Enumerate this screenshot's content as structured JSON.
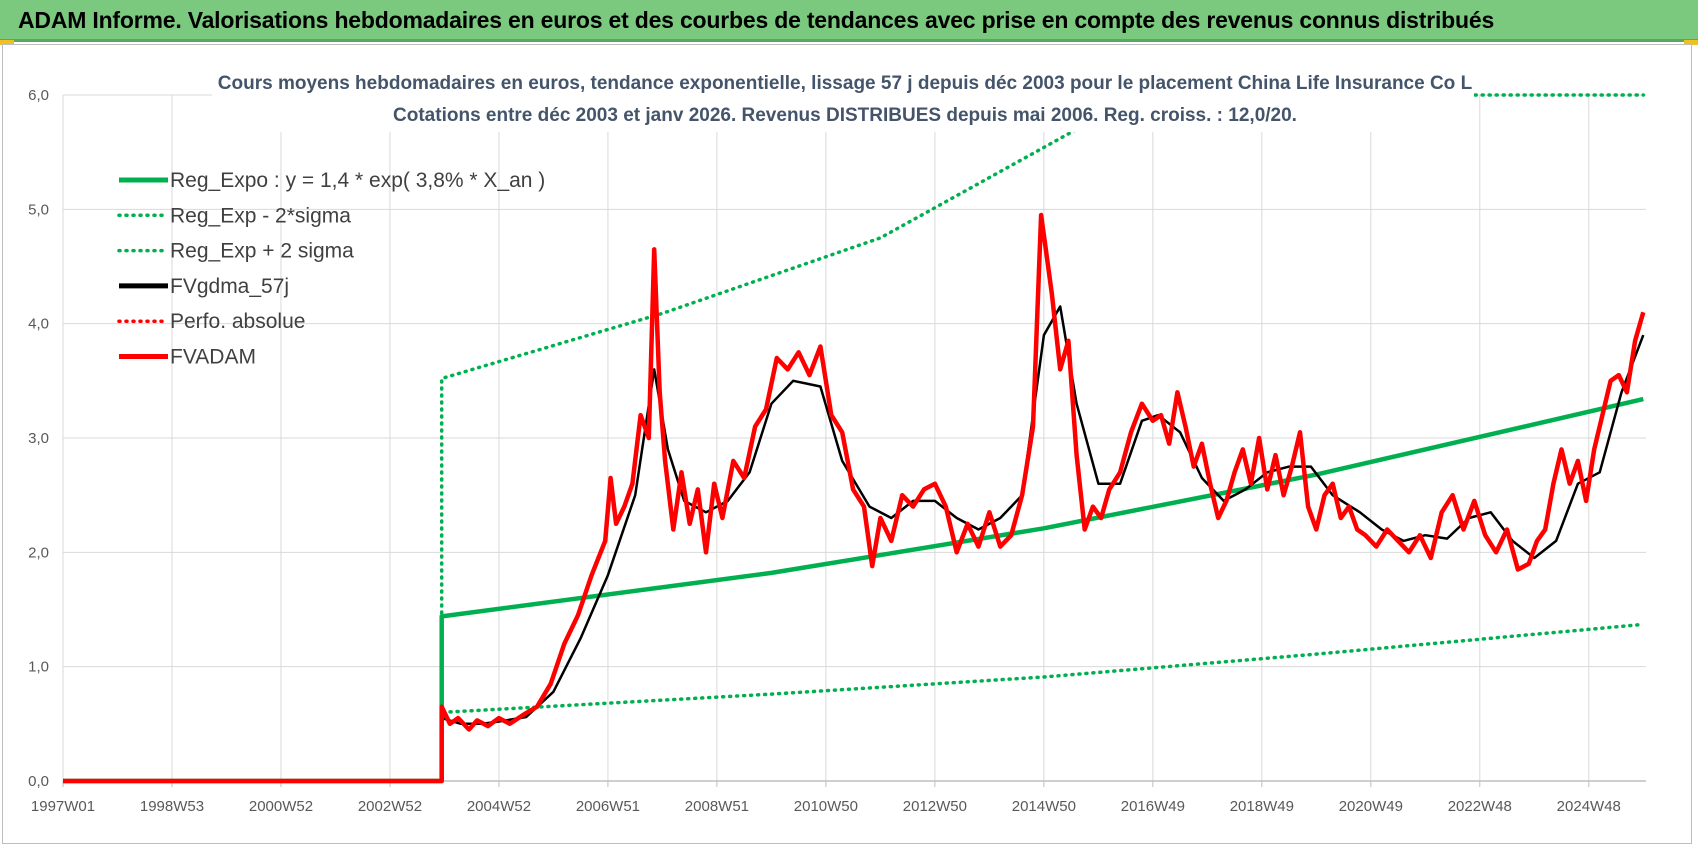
{
  "header": {
    "title": "ADAM Informe. Valorisations hebdomadaires en euros et des courbes de tendances avec prise en compte des revenus connus distribués"
  },
  "colors": {
    "banner": "#7bc97f",
    "green": "#00b050",
    "black": "#000000",
    "red": "#ff0000",
    "grid": "#d9d9d9"
  },
  "chart_data": {
    "type": "line",
    "title": "Cours moyens hebdomadaires en euros, tendance exponentielle, lissage 57 j depuis déc 2003 pour le placement China Life Insurance Co L",
    "subtitle": "Cotations entre déc 2003 et janv 2026. Revenus DISTRIBUES depuis mai 2006. Reg. croiss. : 12,0/20.",
    "xlabel": "",
    "ylabel": "",
    "ylim": [
      0,
      6
    ],
    "yticks": [
      "0,0",
      "1,0",
      "2,0",
      "3,0",
      "4,0",
      "5,0",
      "6,0"
    ],
    "xlim": [
      1997.0,
      2026.05
    ],
    "xticks": [
      {
        "label": "1997W01",
        "x": 1997.0
      },
      {
        "label": "1998W53",
        "x": 1999.0
      },
      {
        "label": "2000W52",
        "x": 2001.0
      },
      {
        "label": "2002W52",
        "x": 2003.0
      },
      {
        "label": "2004W52",
        "x": 2005.0
      },
      {
        "label": "2006W51",
        "x": 2007.0
      },
      {
        "label": "2008W51",
        "x": 2009.0
      },
      {
        "label": "2010W50",
        "x": 2011.0
      },
      {
        "label": "2012W50",
        "x": 2013.0
      },
      {
        "label": "2014W50",
        "x": 2015.0
      },
      {
        "label": "2016W49",
        "x": 2017.0
      },
      {
        "label": "2018W49",
        "x": 2019.0
      },
      {
        "label": "2020W49",
        "x": 2021.0
      },
      {
        "label": "2022W48",
        "x": 2023.0
      },
      {
        "label": "2024W48",
        "x": 2025.0
      }
    ],
    "grid": true,
    "legend_position": "top-left",
    "start_year": 2003.95,
    "series": [
      {
        "name": "Reg_Expo : y = 1,4 * exp( 3,8% *  X_an )",
        "color": "#00b050",
        "style": "solid",
        "width": 4.5,
        "x": [
          1997.0,
          2003.95,
          2003.95,
          2010.0,
          2015.0,
          2020.0,
          2026.0
        ],
        "y": [
          0,
          0,
          1.44,
          1.82,
          2.21,
          2.68,
          3.34
        ]
      },
      {
        "name": "Reg_Exp - 2*sigma",
        "color": "#00b050",
        "style": "dotted",
        "width": 3.5,
        "x": [
          2003.95,
          2003.95,
          2010.0,
          2015.0,
          2020.0,
          2026.0
        ],
        "y": [
          0,
          0.6,
          0.76,
          0.91,
          1.11,
          1.37
        ]
      },
      {
        "name": "Reg_Exp + 2 sigma",
        "color": "#00b050",
        "style": "dotted",
        "width": 3.5,
        "x": [
          2003.95,
          2003.95,
          2008.0,
          2012.0,
          2015.6,
          2016.0,
          2026.0
        ],
        "y": [
          0,
          3.52,
          4.09,
          4.75,
          5.7,
          6.0,
          6.0
        ]
      },
      {
        "name": "FVgdma_57j",
        "color": "#000000",
        "style": "solid",
        "width": 2.5,
        "x": [
          1997.0,
          2003.95,
          2003.95,
          2004.3,
          2004.7,
          2005.0,
          2005.5,
          2006.0,
          2006.5,
          2007.0,
          2007.5,
          2007.85,
          2008.1,
          2008.4,
          2008.8,
          2009.2,
          2009.6,
          2010.0,
          2010.4,
          2010.9,
          2011.3,
          2011.8,
          2012.2,
          2012.6,
          2013.0,
          2013.4,
          2013.8,
          2014.2,
          2014.6,
          2015.0,
          2015.3,
          2015.6,
          2016.0,
          2016.4,
          2016.8,
          2017.1,
          2017.5,
          2017.9,
          2018.3,
          2018.7,
          2019.1,
          2019.5,
          2019.9,
          2020.3,
          2020.8,
          2021.2,
          2021.6,
          2022.0,
          2022.4,
          2022.8,
          2023.2,
          2023.6,
          2024.0,
          2024.4,
          2024.8,
          2025.2,
          2025.6,
          2026.0
        ],
        "y": [
          0,
          0,
          0.55,
          0.5,
          0.5,
          0.52,
          0.56,
          0.78,
          1.25,
          1.8,
          2.5,
          3.6,
          2.9,
          2.45,
          2.35,
          2.45,
          2.7,
          3.3,
          3.5,
          3.45,
          2.8,
          2.4,
          2.3,
          2.45,
          2.45,
          2.3,
          2.2,
          2.3,
          2.5,
          3.9,
          4.15,
          3.3,
          2.6,
          2.6,
          3.15,
          3.2,
          3.05,
          2.65,
          2.45,
          2.55,
          2.7,
          2.75,
          2.75,
          2.5,
          2.35,
          2.2,
          2.1,
          2.15,
          2.12,
          2.3,
          2.35,
          2.1,
          1.95,
          2.1,
          2.6,
          2.7,
          3.4,
          3.9
        ]
      },
      {
        "name": "Perfo. absolue",
        "color": "#ff0000",
        "style": "dotted",
        "width": 3,
        "x": [],
        "y": []
      },
      {
        "name": "FVADAM",
        "color": "#ff0000",
        "style": "solid",
        "width": 4.5,
        "x": [
          1997.0,
          2003.95,
          2003.95,
          2004.1,
          2004.25,
          2004.45,
          2004.6,
          2004.8,
          2005.0,
          2005.2,
          2005.45,
          2005.7,
          2005.95,
          2006.2,
          2006.45,
          2006.7,
          2006.95,
          2007.05,
          2007.15,
          2007.3,
          2007.45,
          2007.6,
          2007.75,
          2007.85,
          2007.95,
          2008.05,
          2008.2,
          2008.35,
          2008.5,
          2008.65,
          2008.8,
          2008.95,
          2009.1,
          2009.3,
          2009.5,
          2009.7,
          2009.9,
          2010.1,
          2010.3,
          2010.5,
          2010.7,
          2010.9,
          2011.1,
          2011.3,
          2011.5,
          2011.7,
          2011.85,
          2012.0,
          2012.2,
          2012.4,
          2012.6,
          2012.8,
          2013.0,
          2013.2,
          2013.4,
          2013.6,
          2013.8,
          2014.0,
          2014.2,
          2014.4,
          2014.6,
          2014.8,
          2014.95,
          2015.05,
          2015.15,
          2015.3,
          2015.45,
          2015.6,
          2015.75,
          2015.9,
          2016.05,
          2016.2,
          2016.4,
          2016.6,
          2016.8,
          2017.0,
          2017.15,
          2017.3,
          2017.45,
          2017.6,
          2017.75,
          2017.9,
          2018.05,
          2018.2,
          2018.35,
          2018.5,
          2018.65,
          2018.8,
          2018.95,
          2019.1,
          2019.25,
          2019.4,
          2019.55,
          2019.7,
          2019.85,
          2020.0,
          2020.15,
          2020.3,
          2020.45,
          2020.6,
          2020.75,
          2020.9,
          2021.1,
          2021.3,
          2021.5,
          2021.7,
          2021.9,
          2022.1,
          2022.3,
          2022.5,
          2022.7,
          2022.9,
          2023.1,
          2023.3,
          2023.5,
          2023.7,
          2023.9,
          2024.05,
          2024.2,
          2024.35,
          2024.5,
          2024.65,
          2024.8,
          2024.95,
          2025.1,
          2025.25,
          2025.4,
          2025.55,
          2025.7,
          2025.85,
          2026.0
        ],
        "y": [
          0,
          0,
          0.65,
          0.5,
          0.55,
          0.45,
          0.53,
          0.48,
          0.55,
          0.5,
          0.58,
          0.65,
          0.85,
          1.2,
          1.45,
          1.8,
          2.1,
          2.65,
          2.25,
          2.4,
          2.6,
          3.2,
          3.0,
          4.65,
          3.4,
          2.8,
          2.2,
          2.7,
          2.25,
          2.55,
          2.0,
          2.6,
          2.3,
          2.8,
          2.65,
          3.1,
          3.25,
          3.7,
          3.6,
          3.75,
          3.55,
          3.8,
          3.2,
          3.05,
          2.55,
          2.4,
          1.88,
          2.3,
          2.1,
          2.5,
          2.4,
          2.55,
          2.6,
          2.4,
          2.0,
          2.25,
          2.05,
          2.35,
          2.05,
          2.15,
          2.5,
          3.1,
          4.95,
          4.6,
          4.25,
          3.6,
          3.85,
          2.85,
          2.2,
          2.4,
          2.3,
          2.55,
          2.7,
          3.05,
          3.3,
          3.15,
          3.2,
          2.95,
          3.4,
          3.1,
          2.75,
          2.95,
          2.6,
          2.3,
          2.45,
          2.7,
          2.9,
          2.6,
          3.0,
          2.55,
          2.85,
          2.5,
          2.75,
          3.05,
          2.4,
          2.2,
          2.5,
          2.6,
          2.3,
          2.4,
          2.2,
          2.15,
          2.05,
          2.2,
          2.1,
          2.0,
          2.15,
          1.95,
          2.35,
          2.5,
          2.2,
          2.45,
          2.15,
          2.0,
          2.2,
          1.85,
          1.9,
          2.1,
          2.2,
          2.6,
          2.9,
          2.6,
          2.8,
          2.45,
          2.9,
          3.2,
          3.5,
          3.55,
          3.4,
          3.85,
          4.1
        ]
      }
    ]
  }
}
